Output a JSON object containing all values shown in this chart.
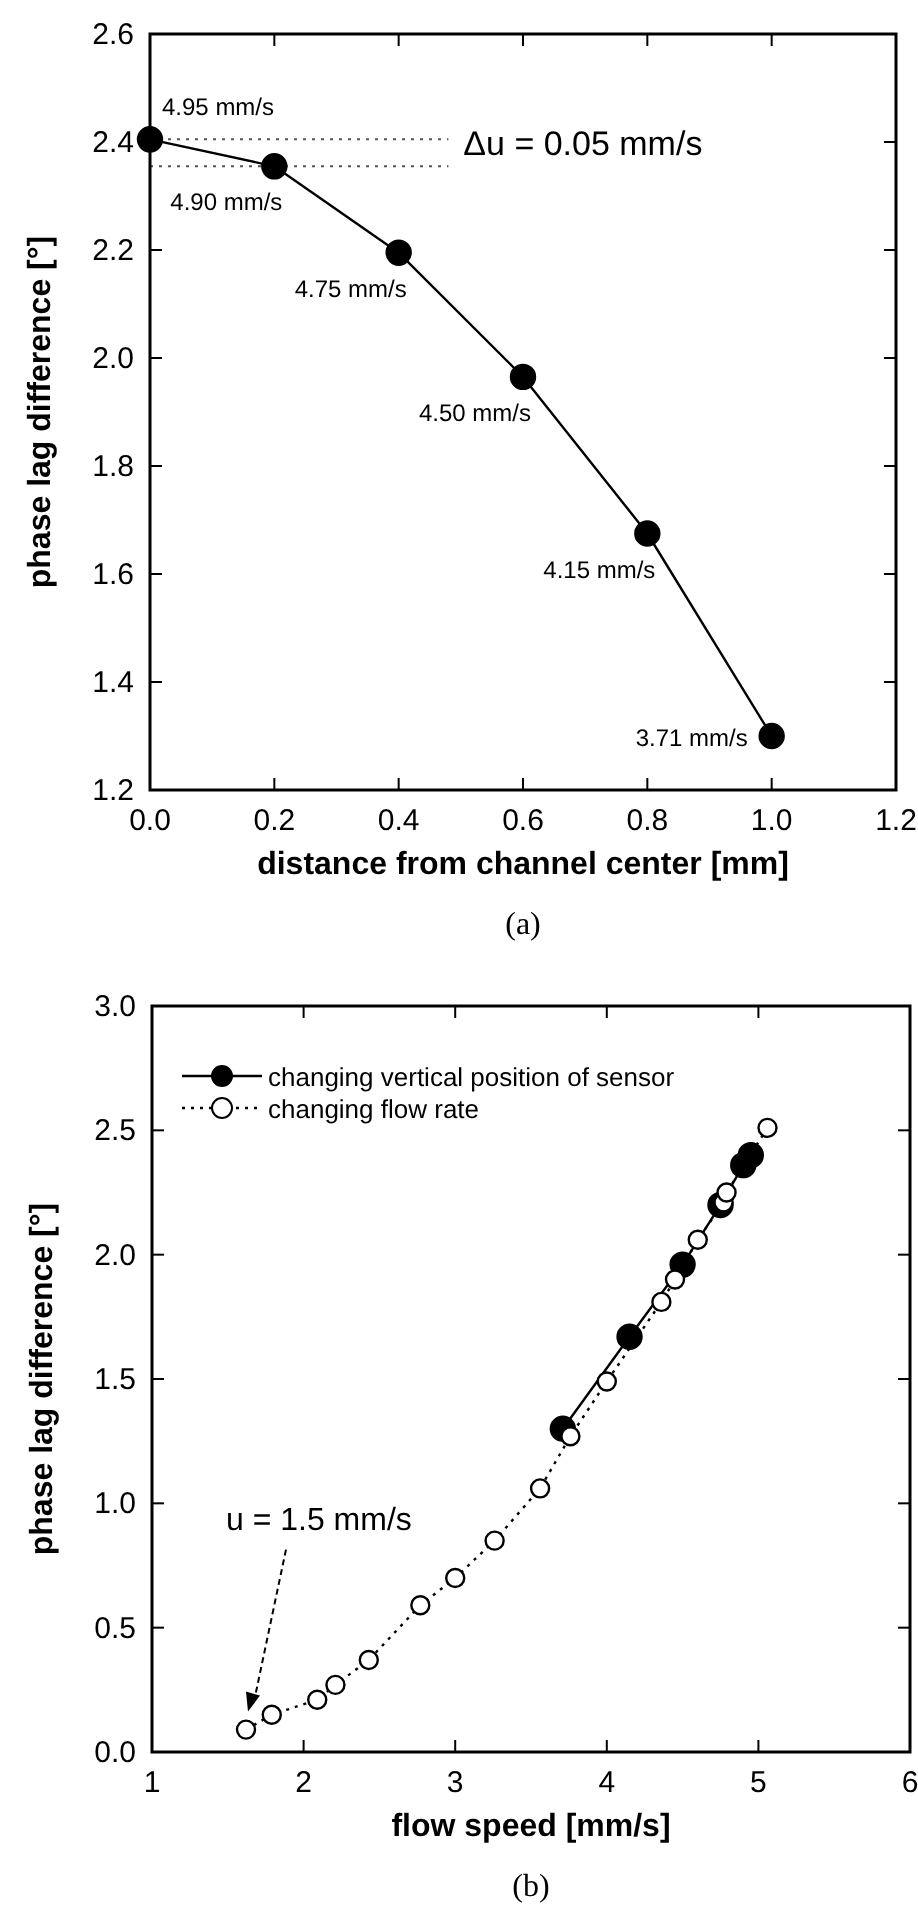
{
  "chart_data": [
    {
      "type": "line",
      "xlabel": "distance from channel center [mm]",
      "ylabel": "phase lag difference [°]",
      "x": [
        0,
        0.2,
        0.4,
        0.6,
        0.8,
        1.0
      ],
      "series": [
        {
          "color": "#000000",
          "values": [
            2.405,
            2.355,
            2.195,
            1.965,
            1.675,
            1.3
          ]
        }
      ],
      "marker": "circle",
      "line_style": "solid",
      "xlim": [
        0,
        1.2
      ],
      "xticks": [
        {
          "value": 0,
          "label": "0.0"
        },
        0.2,
        0.4,
        0.6,
        0.8,
        {
          "value": 1,
          "label": "1.0"
        },
        1.2
      ],
      "ylim": [
        1.2,
        2.6
      ],
      "yticks": [
        1.2,
        1.4,
        1.6,
        1.8,
        {
          "value": 2,
          "label": "2.0"
        },
        2.2,
        2.4,
        2.6
      ],
      "ref_lines": [
        {
          "axis": "y",
          "value": 2.405,
          "line_style": "dotted",
          "color": "#555555"
        },
        {
          "axis": "y",
          "value": 2.355,
          "line_style": "dotted",
          "color": "#555555"
        }
      ],
      "annotations": [
        {
          "text": "4.95 mm/s",
          "x": 0,
          "y": 2.405
        },
        {
          "text": "4.90 mm/s",
          "x": 0.2,
          "y": 2.355
        },
        {
          "text": "4.75 mm/s",
          "x": 0.4,
          "y": 2.195
        },
        {
          "text": "4.50 mm/s",
          "x": 0.6,
          "y": 1.965
        },
        {
          "text": "4.15 mm/s",
          "x": 0.8,
          "y": 1.675
        },
        {
          "text": "3.71 mm/s",
          "x": 1.0,
          "y": 1.3
        },
        "Δu = 0.05 mm/s",
        "(a)"
      ]
    },
    {
      "type": "line",
      "xlabel": "flow speed [mm/s]",
      "ylabel": "phase lag difference [°]",
      "legend": "top left",
      "marker": "circle",
      "series": [
        {
          "name": "changing vertical position of sensor",
          "color": "#000000",
          "line_style": "solid",
          "x": [
            3.71,
            4.15,
            4.5,
            4.75,
            4.9,
            4.95
          ],
          "values": [
            1.3,
            1.67,
            1.96,
            2.2,
            2.36,
            2.4
          ]
        },
        {
          "name": "changing flow rate",
          "color": "#000000",
          "line_style": "dotted",
          "x": [
            1.62,
            1.79,
            2.09,
            2.21,
            2.43,
            2.77,
            3.0,
            3.26,
            3.56,
            3.76,
            4.0,
            4.36,
            4.45,
            4.6,
            4.77,
            4.79,
            5.06
          ],
          "values": [
            0.09,
            0.15,
            0.21,
            0.27,
            0.37,
            0.59,
            0.7,
            0.85,
            1.06,
            1.27,
            1.49,
            1.81,
            1.9,
            2.06,
            2.21,
            2.25,
            2.51
          ]
        }
      ],
      "xlim": [
        1,
        6
      ],
      "xticks": [
        1,
        2,
        3,
        4,
        5,
        6
      ],
      "ylim": [
        0,
        3
      ],
      "yticks": [
        {
          "value": 0,
          "label": "0.0"
        },
        0.5,
        {
          "value": 1,
          "label": "1.0"
        },
        1.5,
        {
          "value": 2,
          "label": "2.0"
        },
        2.5,
        {
          "value": 3,
          "label": "3.0"
        }
      ],
      "annotations": [
        "u = 1.5 mm/s",
        "(b)"
      ]
    }
  ]
}
